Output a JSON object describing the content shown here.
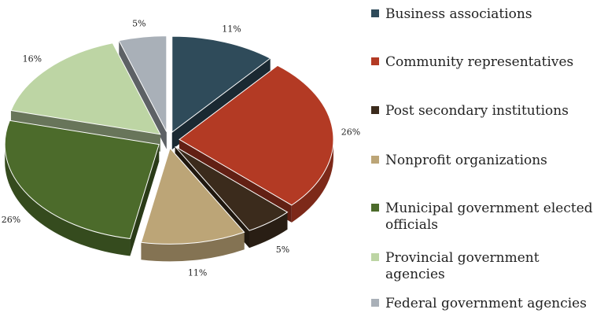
{
  "chart_data": {
    "type": "pie",
    "title": "",
    "categories": [
      "Business associations",
      "Community representatives",
      "Post secondary institutions",
      "Nonprofit organizations",
      "Municipal government elected officials",
      "Provincial government agencies",
      "Federal government agencies"
    ],
    "values": [
      11,
      26,
      5,
      11,
      26,
      16,
      5
    ],
    "value_labels": [
      "11%",
      "26%",
      "5%",
      "11%",
      "26%",
      "16%",
      "5%"
    ],
    "colors": [
      "#2f4b5a",
      "#b33a24",
      "#3b2b1c",
      "#bca577",
      "#4c6b2b",
      "#bdd5a4",
      "#a9b0b8"
    ],
    "legend_position": "right",
    "exploded": true,
    "style": "3d"
  }
}
